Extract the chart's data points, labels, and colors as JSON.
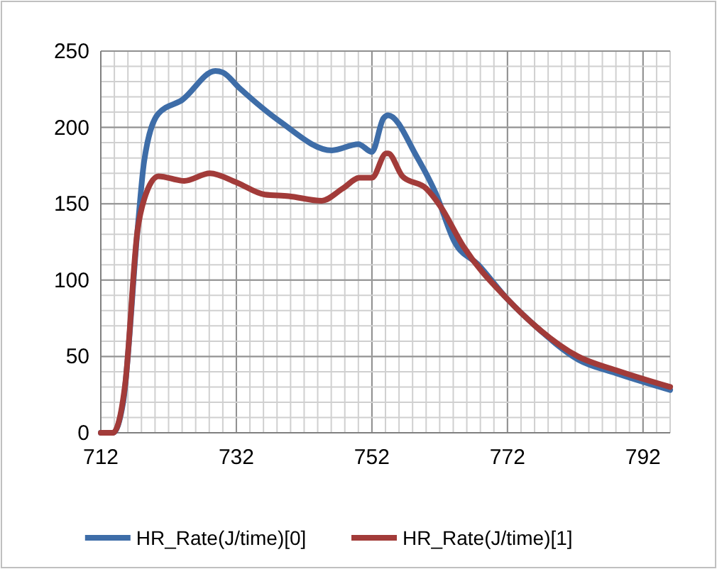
{
  "chart_data": {
    "type": "line",
    "xlim": [
      712,
      796
    ],
    "xticks": [
      712,
      732,
      752,
      772,
      792
    ],
    "ylim": [
      0,
      250
    ],
    "yticks": [
      0,
      50,
      100,
      150,
      200,
      250
    ],
    "grid": true,
    "legend": "bottom",
    "marker": "none",
    "line_style": "solid",
    "series": [
      {
        "name": "HR_Rate(J/time)[0]",
        "color": "#3e6da8",
        "x": [
          712,
          713.8,
          715.3,
          717.4,
          718.4,
          720.5,
          724,
          728.9,
          730,
          732.4,
          738.4,
          746.1,
          750,
          752,
          753.7,
          754.4,
          758.6,
          761.4,
          764.2,
          767.7,
          771.9,
          776.1,
          782.4,
          788,
          796
        ],
        "values": [
          0,
          0,
          20,
          132,
          178,
          209,
          218,
          237,
          236,
          226,
          204,
          185,
          189,
          184,
          206,
          208,
          181,
          157,
          125,
          110,
          88,
          70,
          48,
          39,
          28
        ]
      },
      {
        "name": "HR_Rate(J/time)[1]",
        "color": "#a23b39",
        "x": [
          712,
          713.8,
          715.6,
          717.4,
          718.4,
          720.5,
          724.3,
          728.1,
          732,
          736.2,
          739.7,
          744.6,
          747.7,
          750.2,
          752,
          754.1,
          754.4,
          756.5,
          760,
          762,
          765.5,
          771.9,
          776.1,
          782.4,
          788,
          796
        ],
        "values": [
          0,
          0,
          32,
          132,
          153,
          168,
          165,
          170,
          164,
          156,
          155,
          152,
          160,
          167,
          167,
          183,
          183,
          168,
          160,
          149,
          122,
          88,
          70,
          50,
          41,
          30
        ]
      }
    ]
  }
}
